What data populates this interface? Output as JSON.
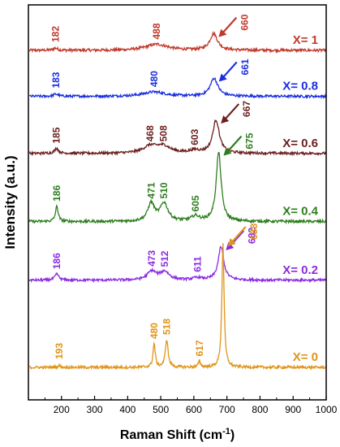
{
  "chart_data": {
    "type": "line",
    "title": "",
    "xlabel": "Raman Shift (cm",
    "xlabel_sup": "-1",
    "xlabel_close": ")",
    "ylabel": "Intensity (a.u.)",
    "xlim": [
      100,
      1000
    ],
    "x_ticks": [
      200,
      300,
      400,
      500,
      600,
      700,
      800,
      900,
      1000
    ],
    "y_ticks_shown": false,
    "grid": false,
    "legend": "none",
    "series": [
      {
        "name": "X= 1",
        "color": "#c0392b",
        "base_offset": 10,
        "noise": 0.5,
        "peaks": [
          {
            "center": 182,
            "height": 0.8,
            "width": 8
          },
          {
            "center": 488,
            "height": 2.2,
            "width": 40
          },
          {
            "center": 660,
            "height": 6,
            "width": 14
          }
        ],
        "peak_labels": [
          {
            "text": "182",
            "x": 182
          },
          {
            "text": "488",
            "x": 488
          },
          {
            "text": "660",
            "x": 660,
            "arrow": true
          }
        ]
      },
      {
        "name": "X= 0.8",
        "color": "#1a2ee0",
        "base_offset": 8.55,
        "noise": 0.45,
        "peaks": [
          {
            "center": 183,
            "height": 0.8,
            "width": 8
          },
          {
            "center": 480,
            "height": 1.6,
            "width": 40
          },
          {
            "center": 661,
            "height": 6.5,
            "width": 14
          }
        ],
        "peak_labels": [
          {
            "text": "183",
            "x": 183
          },
          {
            "text": "480",
            "x": 480
          },
          {
            "text": "661",
            "x": 661,
            "arrow": true
          }
        ]
      },
      {
        "name": "X= 0.6",
        "color": "#6b1f1f",
        "base_offset": 6.75,
        "noise": 0.45,
        "peaks": [
          {
            "center": 185,
            "height": 1.8,
            "width": 7
          },
          {
            "center": 468,
            "height": 2.5,
            "width": 25
          },
          {
            "center": 508,
            "height": 2.5,
            "width": 25
          },
          {
            "center": 603,
            "height": 1.0,
            "width": 18
          },
          {
            "center": 667,
            "height": 12,
            "width": 12
          }
        ],
        "peak_labels": [
          {
            "text": "185",
            "x": 185
          },
          {
            "text": "468",
            "x": 468
          },
          {
            "text": "508",
            "x": 508
          },
          {
            "text": "603",
            "x": 603
          },
          {
            "text": "667",
            "x": 667,
            "arrow": true
          }
        ]
      },
      {
        "name": "X= 0.4",
        "color": "#2e7d1e",
        "base_offset": 4.6,
        "noise": 0.5,
        "peaks": [
          {
            "center": 186,
            "height": 5.5,
            "width": 5
          },
          {
            "center": 471,
            "height": 6.5,
            "width": 12
          },
          {
            "center": 510,
            "height": 6.5,
            "width": 14
          },
          {
            "center": 605,
            "height": 1.8,
            "width": 15
          },
          {
            "center": 675,
            "height": 25,
            "width": 9
          }
        ],
        "peak_labels": [
          {
            "text": "186",
            "x": 186
          },
          {
            "text": "471",
            "x": 471
          },
          {
            "text": "510",
            "x": 510
          },
          {
            "text": "605",
            "x": 605
          },
          {
            "text": "675",
            "x": 675,
            "arrow": true
          }
        ]
      },
      {
        "name": "X= 0.2",
        "color": "#8a2be2",
        "base_offset": 2.75,
        "noise": 0.45,
        "peaks": [
          {
            "center": 186,
            "height": 2.2,
            "width": 7
          },
          {
            "center": 473,
            "height": 3.2,
            "width": 16
          },
          {
            "center": 512,
            "height": 3.0,
            "width": 16
          },
          {
            "center": 611,
            "height": 0.8,
            "width": 15
          },
          {
            "center": 682,
            "height": 12,
            "width": 10
          }
        ],
        "peak_labels": [
          {
            "text": "186",
            "x": 186
          },
          {
            "text": "473",
            "x": 473
          },
          {
            "text": "512",
            "x": 512
          },
          {
            "text": "611",
            "x": 611
          },
          {
            "text": "682",
            "x": 682,
            "arrow": true
          }
        ]
      },
      {
        "name": "X= 0",
        "color": "#e09418",
        "base_offset": 0,
        "noise": 0.5,
        "peaks": [
          {
            "center": 193,
            "height": 0.6,
            "width": 5
          },
          {
            "center": 480,
            "height": 8.5,
            "width": 4
          },
          {
            "center": 518,
            "height": 10,
            "width": 5
          },
          {
            "center": 617,
            "height": 2.2,
            "width": 4
          },
          {
            "center": 688,
            "height": 45,
            "width": 4
          }
        ],
        "peak_labels": [
          {
            "text": "193",
            "x": 193
          },
          {
            "text": "480",
            "x": 480
          },
          {
            "text": "518",
            "x": 518
          },
          {
            "text": "617",
            "x": 617
          },
          {
            "text": "688",
            "x": 688,
            "arrow": true
          }
        ]
      }
    ]
  }
}
